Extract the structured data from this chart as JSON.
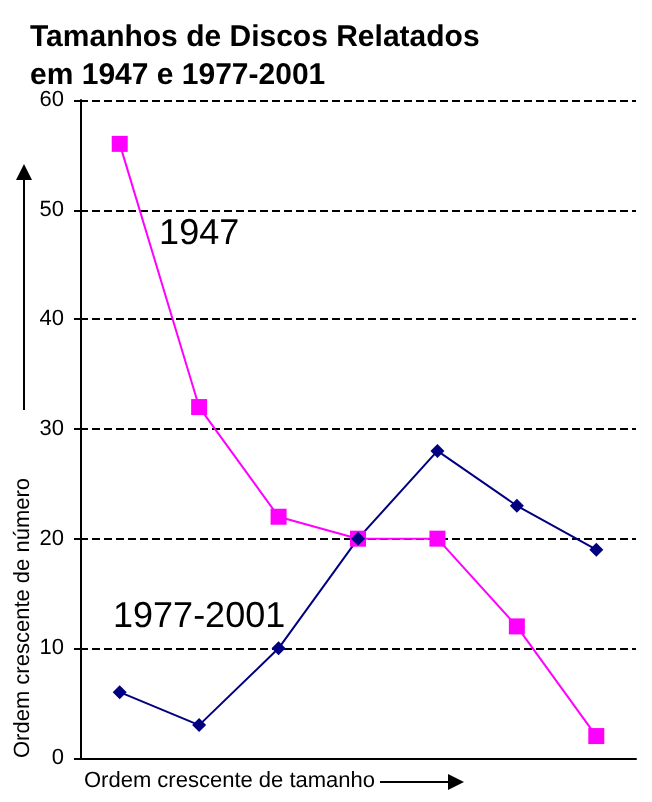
{
  "chart_data": {
    "type": "line",
    "title": "Tamanhos de Discos Relatados\nem 1947 e 1977-2001",
    "xlabel": "Ordem crescente de tamanho",
    "ylabel": "Ordem crescente de número",
    "categories": [
      null,
      null,
      null,
      null,
      null,
      null,
      null
    ],
    "series": [
      {
        "name": "1947",
        "color": "#ff00ff",
        "marker": "square",
        "values": [
          56,
          32,
          22,
          20,
          20,
          12,
          2
        ]
      },
      {
        "name": "1977-2001",
        "color": "#000080",
        "marker": "diamond",
        "values": [
          6,
          3,
          10,
          20,
          28,
          23,
          19
        ]
      }
    ],
    "ylim": [
      0,
      60
    ],
    "yticks": [
      0,
      10,
      20,
      30,
      40,
      50,
      60
    ],
    "grid": "y",
    "legend": false,
    "line_style": "solid"
  }
}
